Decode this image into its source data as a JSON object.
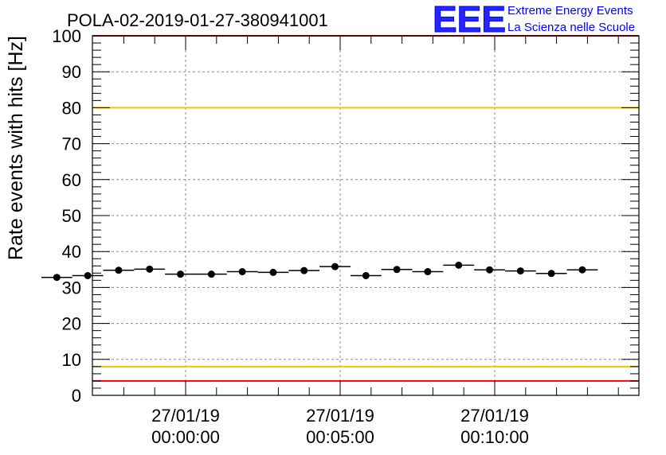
{
  "chart_data": {
    "type": "scatter",
    "title": "POLA-02-2019-01-27-380941001",
    "xlabel": "",
    "ylabel": "Rate events with hits [Hz]",
    "ylim": [
      0,
      100
    ],
    "y_ticks": [
      0,
      10,
      20,
      30,
      40,
      50,
      60,
      70,
      80,
      90,
      100
    ],
    "x_tick_labels": [
      {
        "date": "27/01/19",
        "time": "00:00:00"
      },
      {
        "date": "27/01/19",
        "time": "00:05:00"
      },
      {
        "date": "27/01/19",
        "time": "00:10:00"
      }
    ],
    "grid": true,
    "points": [
      {
        "t": "-00:04:10",
        "rate": 32.8
      },
      {
        "t": "-00:03:10",
        "rate": 33.3
      },
      {
        "t": "-00:02:10",
        "rate": 34.8
      },
      {
        "t": "-00:01:10",
        "rate": 35.1
      },
      {
        "t": "-00:00:10",
        "rate": 33.7
      },
      {
        "t": "00:00:50",
        "rate": 33.7
      },
      {
        "t": "00:01:50",
        "rate": 34.4
      },
      {
        "t": "00:02:50",
        "rate": 34.2
      },
      {
        "t": "00:03:50",
        "rate": 34.7
      },
      {
        "t": "00:04:50",
        "rate": 35.8
      },
      {
        "t": "00:05:50",
        "rate": 33.3
      },
      {
        "t": "00:06:50",
        "rate": 35.0
      },
      {
        "t": "00:07:50",
        "rate": 34.4
      },
      {
        "t": "00:08:50",
        "rate": 36.2
      },
      {
        "t": "00:09:50",
        "rate": 34.9
      },
      {
        "t": "00:10:50",
        "rate": 34.6
      },
      {
        "t": "00:11:50",
        "rate": 33.9
      },
      {
        "t": "00:12:50",
        "rate": 34.9
      }
    ],
    "bin_width": "00:01:00",
    "reference_lines": [
      {
        "y": 100,
        "color": "#ff0000"
      },
      {
        "y": 80,
        "color": "#f2c500"
      },
      {
        "y": 8,
        "color": "#f2c500"
      },
      {
        "y": 4,
        "color": "#ff0000"
      }
    ]
  },
  "logo": {
    "mark": "EEE",
    "line1": "Extreme Energy Events",
    "line2": "La Scienza nelle Scuole",
    "color": "#0000ff"
  }
}
